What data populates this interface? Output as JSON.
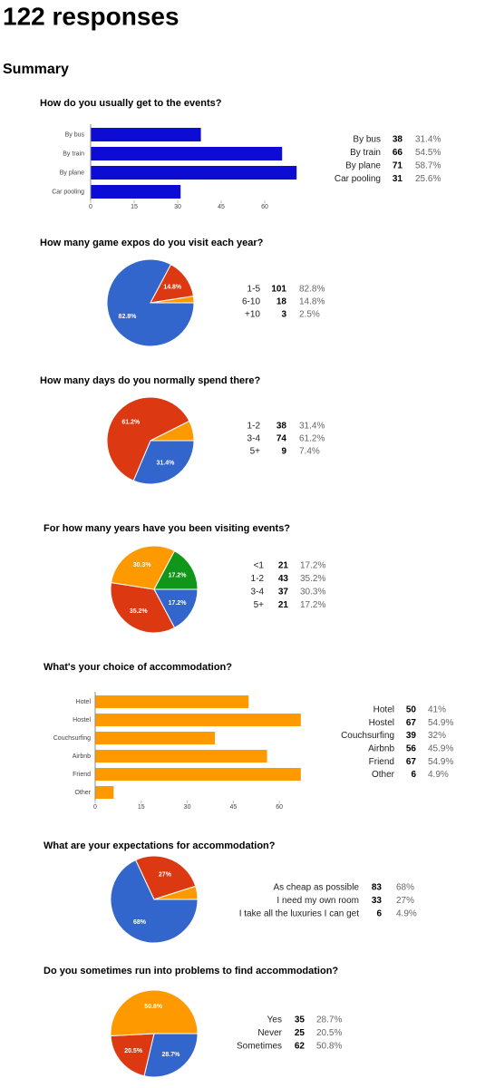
{
  "header": {
    "title": "122 responses",
    "subtitle": "Summary"
  },
  "chart_data": [
    {
      "type": "bar",
      "title": "How do you usually get to the events?",
      "categories": [
        "By bus",
        "By train",
        "By plane",
        "Car pooling"
      ],
      "values": [
        38,
        66,
        71,
        31
      ],
      "percent_labels": [
        "31.4%",
        "54.5%",
        "58.7%",
        "25.6%"
      ],
      "color": "#0c0cd4",
      "xlim": [
        0,
        75
      ],
      "xticks": [
        0,
        15,
        30,
        45,
        60
      ],
      "grid": false
    },
    {
      "type": "pie",
      "title": "How many game expos do you visit each year?",
      "categories": [
        "1-5",
        "6-10",
        "+10"
      ],
      "values": [
        101,
        18,
        3
      ],
      "percent_labels": [
        "82.8%",
        "14.8%",
        "2.5%"
      ],
      "colors": [
        "#3366cc",
        "#dc3912",
        "#ff9900"
      ]
    },
    {
      "type": "pie",
      "title": "How many days do you normally spend there?",
      "categories": [
        "1-2",
        "3-4",
        "5+"
      ],
      "values": [
        38,
        74,
        9
      ],
      "percent_labels": [
        "31.4%",
        "61.2%",
        "7.4%"
      ],
      "colors": [
        "#3366cc",
        "#dc3912",
        "#ff9900"
      ]
    },
    {
      "type": "pie",
      "title": "For how many years have you been visiting events?",
      "categories": [
        "<1",
        "1-2",
        "3-4",
        "5+"
      ],
      "values": [
        21,
        43,
        37,
        21
      ],
      "percent_labels": [
        "17.2%",
        "35.2%",
        "30.3%",
        "17.2%"
      ],
      "colors": [
        "#3366cc",
        "#dc3912",
        "#ff9900",
        "#109618"
      ]
    },
    {
      "type": "bar",
      "title": "What's your choice of accommodation?",
      "categories": [
        "Hotel",
        "Hostel",
        "Couchsurfing",
        "Airbnb",
        "Friend",
        "Other"
      ],
      "values": [
        50,
        67,
        39,
        56,
        67,
        6
      ],
      "percent_labels": [
        "41%",
        "54.9%",
        "32%",
        "45.9%",
        "54.9%",
        "4.9%"
      ],
      "color": "#ff9900",
      "xlim": [
        0,
        70
      ],
      "xticks": [
        0,
        15,
        30,
        45,
        60
      ],
      "grid": false
    },
    {
      "type": "pie",
      "title": "What are your expectations for accommodation?",
      "categories": [
        "As cheap as possible",
        "I need my own room",
        "I take all the luxuries I can get"
      ],
      "values": [
        83,
        33,
        6
      ],
      "percent_labels": [
        "68%",
        "27%",
        "4.9%"
      ],
      "colors": [
        "#3366cc",
        "#dc3912",
        "#ff9900"
      ]
    },
    {
      "type": "pie",
      "title": "Do you sometimes run into problems to find accommodation?",
      "categories": [
        "Yes",
        "Never",
        "Sometimes"
      ],
      "values": [
        35,
        25,
        62
      ],
      "percent_labels": [
        "28.7%",
        "20.5%",
        "50.8%"
      ],
      "colors": [
        "#3366cc",
        "#dc3912",
        "#ff9900"
      ]
    }
  ]
}
